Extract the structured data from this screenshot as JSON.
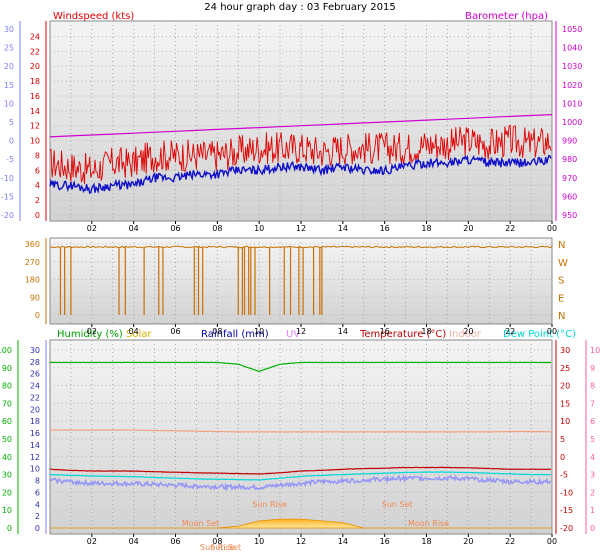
{
  "title": "24 hour graph day : 03 February 2015",
  "x_ticks": [
    "02",
    "04",
    "06",
    "08",
    "10",
    "12",
    "14",
    "16",
    "18",
    "20",
    "22",
    "00"
  ],
  "colors": {
    "windspeed": "#e00000",
    "windgust_line": "#ff1a1a",
    "wind_avg": "#1010c8",
    "barometer": "#d000d0",
    "wind_dir": "#c87000",
    "humidity": "#00b000",
    "solar": "#ffb020",
    "rainfall": "#0000a0",
    "uv": "#e080ff",
    "temperature": "#c00000",
    "indoor": "#f0a080",
    "dew_point": "#00d8d8",
    "blue_axis": "#8080ff",
    "pink_axis": "#ff60a0"
  },
  "chart_data": [
    {
      "type": "line",
      "panel": "wind",
      "title": "24 hour graph day : 03 February 2015",
      "legend": [
        "Windspeed (kts)",
        "Barometer (hpa)"
      ],
      "left_ticks": [
        "0",
        "2",
        "4",
        "6",
        "8",
        "10",
        "12",
        "14",
        "16",
        "18",
        "20",
        "22",
        "24"
      ],
      "left_ylim": [
        0,
        25
      ],
      "far_left_ticks": [
        "-20",
        "-15",
        "-10",
        "-5",
        "0",
        "5",
        "10",
        "15",
        "20",
        "25",
        "30"
      ],
      "right_ticks": [
        "950",
        "960",
        "970",
        "980",
        "990",
        "1000",
        "1010",
        "1020",
        "1030",
        "1040",
        "1050"
      ],
      "right_ylim": [
        950,
        1050
      ],
      "x": [
        0,
        1,
        2,
        3,
        4,
        5,
        6,
        7,
        8,
        9,
        10,
        11,
        12,
        13,
        14,
        15,
        16,
        17,
        18,
        19,
        20,
        21,
        22,
        23,
        24
      ],
      "series": [
        {
          "name": "Barometer (hpa)",
          "axis": "right",
          "values": [
            992,
            992.5,
            993,
            993.5,
            994,
            994.5,
            995,
            995.5,
            996,
            996.5,
            997,
            997.5,
            998,
            998.5,
            999,
            999.5,
            1000,
            1000.5,
            1001,
            1001.5,
            1002,
            1002.5,
            1003,
            1003.5,
            1004
          ]
        },
        {
          "name": "Windspeed (kts)",
          "axis": "left",
          "values": [
            7,
            6.5,
            6,
            7,
            7,
            8,
            8,
            8,
            8,
            8.5,
            9,
            9,
            9,
            8.5,
            9,
            9,
            9,
            9,
            9.5,
            9.5,
            10,
            9.5,
            10,
            9.5,
            10
          ]
        },
        {
          "axis": "left",
          "values": [
            4,
            4,
            3.5,
            4,
            4,
            5,
            5,
            5.5,
            5.5,
            6,
            6,
            6.5,
            6.5,
            6,
            6.5,
            6,
            6,
            6.5,
            7,
            7,
            7.5,
            7,
            7,
            7,
            7.5
          ]
        }
      ]
    },
    {
      "type": "scatter",
      "panel": "direction",
      "left_ticks": [
        "0",
        "90",
        "180",
        "270",
        "360"
      ],
      "right_ticks": [
        "N",
        "E",
        "S",
        "W",
        "N"
      ],
      "ylim": [
        0,
        360
      ],
      "x_range": [
        0,
        24
      ],
      "typical_value": 345,
      "drop_hours": [
        0.5,
        0.7,
        1.0,
        3.3,
        3.6,
        4.5,
        5.2,
        5.4,
        6.9,
        7.1,
        7.3,
        9.0,
        9.2,
        9.3,
        9.5,
        9.6,
        9.8,
        10.5,
        11.2,
        11.5,
        11.9,
        12.1,
        12.6,
        12.9,
        13.0
      ]
    },
    {
      "type": "line",
      "panel": "climate",
      "legend": [
        "Humidity (%)",
        "Solar",
        "Rainfall (mm)",
        "UV",
        "Temperature (°C)",
        "Indoor",
        "Dew Point (°C)"
      ],
      "left_ticks": [
        "0",
        "10",
        "20",
        "30",
        "40",
        "50",
        "60",
        "70",
        "80",
        "90",
        "100"
      ],
      "ylim_humidity": [
        0,
        100
      ],
      "blue_ticks": [
        "0",
        "2",
        "4",
        "6",
        "8",
        "10",
        "12",
        "14",
        "16",
        "18",
        "20",
        "22",
        "24",
        "26",
        "28",
        "30"
      ],
      "red_ticks": [
        "-20",
        "-15",
        "-10",
        "-5",
        "0",
        "5",
        "10",
        "15",
        "20",
        "25",
        "30"
      ],
      "ylim_temperature": [
        -20,
        30
      ],
      "pink_ticks": [
        "0",
        "1",
        "2",
        "3",
        "4",
        "5",
        "6",
        "7",
        "8",
        "9",
        "10"
      ],
      "x": [
        0,
        1,
        2,
        3,
        4,
        5,
        6,
        7,
        8,
        9,
        10,
        11,
        12,
        13,
        14,
        15,
        16,
        17,
        18,
        19,
        20,
        21,
        22,
        23,
        24
      ],
      "series": [
        {
          "name": "Humidity (%)",
          "axis": "humidity",
          "values": [
            93,
            93,
            93,
            93,
            93,
            93,
            93,
            93,
            93,
            92,
            88,
            92,
            93,
            93,
            93,
            93,
            93,
            93,
            93,
            93,
            93,
            93,
            93,
            93,
            93
          ]
        },
        {
          "name": "Indoor",
          "axis": "temperature",
          "values": [
            7.5,
            7.5,
            7.5,
            7.5,
            7.5,
            7.4,
            7.3,
            7.2,
            7.1,
            7.0,
            7.0,
            7.0,
            7.0,
            7.0,
            7.0,
            7.0,
            7.0,
            7.0,
            7.0,
            7.0,
            7.0,
            7.0,
            7.1,
            7.1,
            7.0
          ]
        },
        {
          "name": "Temperature (°C)",
          "axis": "temperature",
          "values": [
            -3.5,
            -3.8,
            -4,
            -4,
            -4,
            -4.2,
            -4.3,
            -4.5,
            -4.6,
            -4.7,
            -4.8,
            -4.5,
            -4,
            -3.8,
            -3.5,
            -3.3,
            -3.2,
            -3,
            -3,
            -3,
            -3.1,
            -3.3,
            -3.5,
            -3.5,
            -3.5
          ]
        },
        {
          "name": "Dew Point (°C)",
          "axis": "temperature",
          "values": [
            -5,
            -5.2,
            -5.4,
            -5.5,
            -5.6,
            -5.8,
            -6,
            -6.2,
            -6.3,
            -6.4,
            -6.5,
            -6,
            -5.5,
            -5.2,
            -5,
            -4.8,
            -4.6,
            -4.4,
            -4.3,
            -4.3,
            -4.4,
            -4.6,
            -4.8,
            -5,
            -5
          ]
        },
        {
          "name": "Rainfall (mm)",
          "axis": "temperature",
          "values": [
            -6.5,
            -7,
            -7.5,
            -7.5,
            -7.6,
            -7.8,
            -8,
            -8.2,
            -8.4,
            -8.5,
            -8.6,
            -8,
            -7.5,
            -7,
            -6.8,
            -6.5,
            -6.3,
            -6,
            -6,
            -6,
            -6.2,
            -6.5,
            -7,
            -7,
            -7
          ]
        },
        {
          "name": "Solar",
          "axis": "humidity",
          "values": [
            0,
            0,
            0,
            0,
            0,
            0,
            0,
            0,
            0,
            1,
            4,
            5,
            5,
            4,
            3,
            0,
            0,
            0,
            0,
            0,
            0,
            0,
            0,
            0,
            0
          ]
        }
      ],
      "annotations": [
        "Sun Rise",
        "Sun Set",
        "Moon Set",
        "Moon Rise",
        "Sun Rise",
        "Sun Set"
      ]
    }
  ]
}
